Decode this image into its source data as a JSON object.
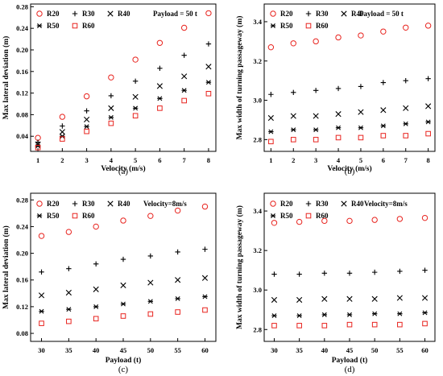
{
  "colors": {
    "red_marker": "#e8231e",
    "black_marker": "#000000",
    "axis": "#000000"
  },
  "chart_data": [
    {
      "type": "scatter",
      "panel_label": "(a)",
      "annotation": "Payload = 50 t",
      "xlabel": "Velocity (m/s)",
      "ylabel": "Max lateral deviation (m)",
      "xlim": [
        0.7,
        8.3
      ],
      "ylim": [
        0.012,
        0.285
      ],
      "xticks": [
        1,
        2,
        3,
        4,
        5,
        6,
        7,
        8
      ],
      "yticks": [
        0.04,
        0.08,
        0.12,
        0.16,
        0.2,
        0.24,
        0.28
      ],
      "ytick_labels": [
        "0.04",
        "0.08",
        "0.12",
        "0.16",
        "0.20",
        "0.24",
        "0.28"
      ],
      "x": [
        1,
        2,
        3,
        4,
        5,
        6,
        7,
        8
      ],
      "series": [
        {
          "name": "R20",
          "marker": "circle-open",
          "color": "red",
          "values": [
            0.037,
            0.076,
            0.114,
            0.149,
            0.182,
            0.213,
            0.241,
            0.268
          ]
        },
        {
          "name": "R30",
          "marker": "plus",
          "color": "black",
          "values": [
            0.029,
            0.059,
            0.087,
            0.115,
            0.142,
            0.166,
            0.19,
            0.211
          ]
        },
        {
          "name": "R40",
          "marker": "x",
          "color": "black",
          "values": [
            0.025,
            0.048,
            0.071,
            0.092,
            0.113,
            0.133,
            0.151,
            0.169
          ]
        },
        {
          "name": "R50",
          "marker": "asterisk",
          "color": "black",
          "values": [
            0.022,
            0.04,
            0.058,
            0.075,
            0.092,
            0.11,
            0.125,
            0.14
          ]
        },
        {
          "name": "R60",
          "marker": "square-open",
          "color": "red",
          "values": [
            0.019,
            0.035,
            0.049,
            0.064,
            0.078,
            0.092,
            0.106,
            0.119
          ]
        }
      ]
    },
    {
      "type": "scatter",
      "panel_label": "(b)",
      "annotation": "Payload = 50 t",
      "xlabel": "Velocity (m/s)",
      "ylabel": "Max width of turning passageway (m)",
      "xlim": [
        0.7,
        8.3
      ],
      "ylim": [
        2.74,
        3.49
      ],
      "xticks": [
        1,
        2,
        3,
        4,
        5,
        6,
        7,
        8
      ],
      "yticks": [
        2.8,
        3.0,
        3.2,
        3.4
      ],
      "ytick_labels": [
        "2.8",
        "3.0",
        "3.2",
        "3.4"
      ],
      "x": [
        1,
        2,
        3,
        4,
        5,
        6,
        7,
        8
      ],
      "series": [
        {
          "name": "R20",
          "marker": "circle-open",
          "color": "red",
          "values": [
            3.27,
            3.29,
            3.3,
            3.32,
            3.33,
            3.35,
            3.37,
            3.38
          ]
        },
        {
          "name": "R30",
          "marker": "plus",
          "color": "black",
          "values": [
            3.03,
            3.04,
            3.05,
            3.06,
            3.07,
            3.09,
            3.1,
            3.11
          ]
        },
        {
          "name": "R40",
          "marker": "x",
          "color": "black",
          "values": [
            2.91,
            2.92,
            2.92,
            2.93,
            2.94,
            2.95,
            2.96,
            2.97
          ]
        },
        {
          "name": "R50",
          "marker": "asterisk",
          "color": "black",
          "values": [
            2.84,
            2.85,
            2.85,
            2.86,
            2.86,
            2.87,
            2.88,
            2.89
          ]
        },
        {
          "name": "R60",
          "marker": "square-open",
          "color": "red",
          "values": [
            2.79,
            2.8,
            2.8,
            2.81,
            2.81,
            2.82,
            2.82,
            2.83
          ]
        }
      ]
    },
    {
      "type": "scatter",
      "panel_label": "(c)",
      "annotation": "Velocity=8m/s",
      "xlabel": "Payload (t)",
      "ylabel": "Max lateral deviation (m)",
      "xlim": [
        28,
        62
      ],
      "ylim": [
        0.068,
        0.29
      ],
      "xticks": [
        30,
        35,
        40,
        45,
        50,
        55,
        60
      ],
      "yticks": [
        0.08,
        0.12,
        0.16,
        0.2,
        0.24,
        0.28
      ],
      "ytick_labels": [
        "0.08",
        "0.12",
        "0.16",
        "0.20",
        "0.24",
        "0.28"
      ],
      "x": [
        30,
        35,
        40,
        45,
        50,
        55,
        60
      ],
      "series": [
        {
          "name": "R20",
          "marker": "circle-open",
          "color": "red",
          "values": [
            0.226,
            0.232,
            0.24,
            0.249,
            0.256,
            0.264,
            0.27
          ]
        },
        {
          "name": "R30",
          "marker": "plus",
          "color": "black",
          "values": [
            0.172,
            0.177,
            0.184,
            0.191,
            0.196,
            0.202,
            0.206
          ]
        },
        {
          "name": "R40",
          "marker": "x",
          "color": "black",
          "values": [
            0.137,
            0.141,
            0.146,
            0.152,
            0.156,
            0.16,
            0.163
          ]
        },
        {
          "name": "R50",
          "marker": "asterisk",
          "color": "black",
          "values": [
            0.113,
            0.116,
            0.12,
            0.124,
            0.128,
            0.132,
            0.135
          ]
        },
        {
          "name": "R60",
          "marker": "square-open",
          "color": "red",
          "values": [
            0.095,
            0.098,
            0.102,
            0.106,
            0.109,
            0.112,
            0.115
          ]
        }
      ]
    },
    {
      "type": "scatter",
      "panel_label": "(d)",
      "annotation": "Velocity=8m/s",
      "xlabel": "Payload (t)",
      "ylabel": "Max width of turning passageway (m)",
      "xlim": [
        28,
        62
      ],
      "ylim": [
        2.74,
        3.49
      ],
      "xticks": [
        30,
        35,
        40,
        45,
        50,
        55,
        60
      ],
      "yticks": [
        2.8,
        3.0,
        3.2,
        3.4
      ],
      "ytick_labels": [
        "2.8",
        "3.0",
        "3.2",
        "3.4"
      ],
      "x": [
        30,
        35,
        40,
        45,
        50,
        55,
        60
      ],
      "series": [
        {
          "name": "R20",
          "marker": "circle-open",
          "color": "red",
          "values": [
            3.34,
            3.345,
            3.35,
            3.35,
            3.355,
            3.36,
            3.365
          ]
        },
        {
          "name": "R30",
          "marker": "plus",
          "color": "black",
          "values": [
            3.08,
            3.08,
            3.085,
            3.085,
            3.09,
            3.095,
            3.1
          ]
        },
        {
          "name": "R40",
          "marker": "x",
          "color": "black",
          "values": [
            2.95,
            2.95,
            2.955,
            2.955,
            2.955,
            2.96,
            2.96
          ]
        },
        {
          "name": "R50",
          "marker": "asterisk",
          "color": "black",
          "values": [
            2.87,
            2.87,
            2.875,
            2.875,
            2.88,
            2.88,
            2.885
          ]
        },
        {
          "name": "R60",
          "marker": "square-open",
          "color": "red",
          "values": [
            2.82,
            2.82,
            2.82,
            2.825,
            2.825,
            2.825,
            2.83
          ]
        }
      ]
    }
  ]
}
